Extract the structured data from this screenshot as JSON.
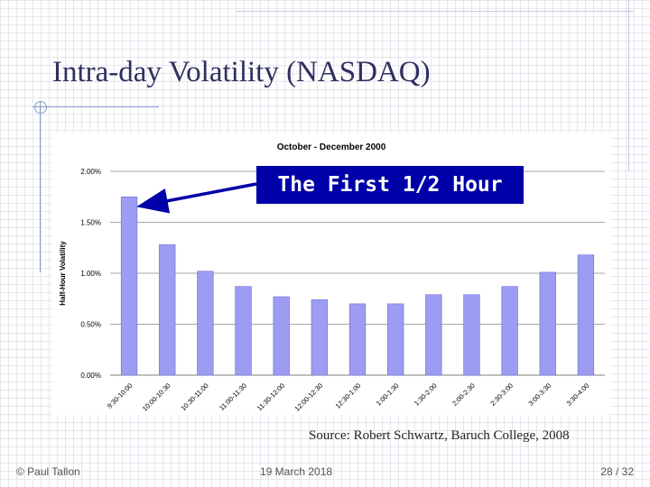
{
  "slide": {
    "title": "Intra-day Volatility (NASDAQ)",
    "callout": "The First 1/2 Hour",
    "source": "Source: Robert Schwartz, Baruch College, 2008",
    "footer": {
      "author": "© Paul Tallon",
      "date": "19 March 2018",
      "page": "28 / 32"
    }
  },
  "colors": {
    "bar": "#9c9cf2",
    "bar_edge": "#6e6ed6",
    "arrow": "#0000a8",
    "title": "#2f2f5f"
  },
  "chart_data": {
    "type": "bar",
    "title": "October - December 2000",
    "xlabel": "",
    "ylabel": "Half-Hour Volatility",
    "ylim": [
      0,
      0.02
    ],
    "yticks": [
      0.0,
      0.005,
      0.01,
      0.015,
      0.02
    ],
    "ytick_labels": [
      "0.00%",
      "0.50%",
      "1.00%",
      "1.50%",
      "2.00%"
    ],
    "grid": true,
    "categories": [
      "9:30-10:00",
      "10:00-10:30",
      "10:30-11:00",
      "11:00-11:30",
      "11:30-12:00",
      "12:00-12:30",
      "12:30-1:00",
      "1:00-1:30",
      "1:30-2:00",
      "2:00-2:30",
      "2:30-3:00",
      "3:00-3:30",
      "3:30-4:00"
    ],
    "series": [
      {
        "values": [
          0.0175,
          0.0128,
          0.0102,
          0.0087,
          0.0077,
          0.0074,
          0.007,
          0.007,
          0.0079,
          0.0079,
          0.0087,
          0.0101,
          0.0118
        ]
      }
    ]
  }
}
